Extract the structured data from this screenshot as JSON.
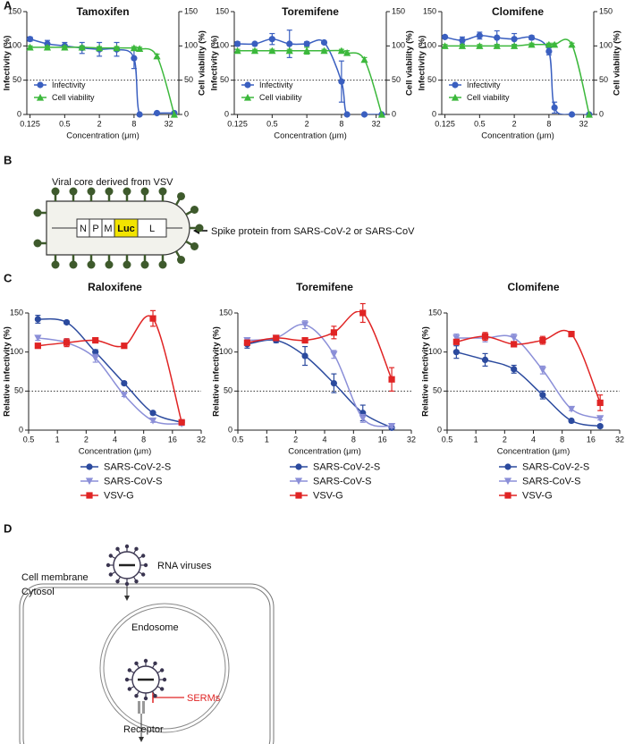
{
  "panel_labels": [
    "A",
    "B",
    "C",
    "D"
  ],
  "chart_data": [
    {
      "type": "scatter",
      "title": "Tamoxifen",
      "x": [
        0.125,
        0.25,
        0.5,
        1,
        2,
        4,
        8,
        10,
        20,
        40
      ],
      "xscale": "log2",
      "xlim": [
        0.11,
        48
      ],
      "xticks": [
        0.125,
        0.5,
        2,
        8,
        32
      ],
      "xlabel": "Concentration (μm)",
      "ylabel": "Infectivity (%)",
      "ylim": [
        0,
        150
      ],
      "yticks": [
        0,
        50,
        100,
        150
      ],
      "y2label": "Cell viability (%)",
      "y2lim": [
        0,
        150
      ],
      "y2ticks": [
        0,
        50,
        100,
        150
      ],
      "reference_line": 50,
      "legend": "lower left",
      "series": [
        {
          "name": "Infectivity",
          "color": "#3a5fc0",
          "marker": "circle",
          "values": [
            110,
            103,
            100,
            97,
            95,
            95,
            82,
            0,
            2,
            2
          ],
          "errors": [
            3,
            5,
            5,
            8,
            10,
            10,
            15,
            0,
            0,
            0
          ]
        },
        {
          "name": "Cell viability",
          "color": "#3cb83c",
          "marker": "triangle",
          "axis": "y2",
          "values": [
            98,
            98,
            98,
            98,
            97,
            97,
            97,
            96,
            85,
            0
          ],
          "errors": [
            2,
            2,
            2,
            2,
            2,
            2,
            2,
            2,
            3,
            0
          ]
        }
      ]
    },
    {
      "type": "scatter",
      "title": "Toremifene",
      "x": [
        0.125,
        0.25,
        0.5,
        1,
        2,
        4,
        8,
        10,
        20,
        40
      ],
      "xscale": "log2",
      "xlim": [
        0.11,
        48
      ],
      "xticks": [
        0.125,
        0.5,
        2,
        8,
        32
      ],
      "xlabel": "Concentration (μm)",
      "ylabel": "Infectivity (%)",
      "ylim": [
        0,
        150
      ],
      "yticks": [
        0,
        50,
        100,
        150
      ],
      "y2label": "Cell viability (%)",
      "y2lim": [
        0,
        150
      ],
      "y2ticks": [
        0,
        50,
        100,
        150
      ],
      "reference_line": 50,
      "legend": "lower left",
      "series": [
        {
          "name": "Infectivity",
          "color": "#3a5fc0",
          "marker": "circle",
          "values": [
            103,
            103,
            110,
            103,
            103,
            105,
            48,
            0,
            0,
            0
          ],
          "errors": [
            3,
            2,
            8,
            20,
            3,
            2,
            30,
            0,
            0,
            0
          ]
        },
        {
          "name": "Cell viability",
          "color": "#3cb83c",
          "marker": "triangle",
          "axis": "y2",
          "values": [
            93,
            93,
            93,
            93,
            93,
            93,
            93,
            90,
            80,
            0
          ],
          "errors": [
            2,
            2,
            2,
            2,
            5,
            2,
            2,
            3,
            3,
            0
          ]
        }
      ]
    },
    {
      "type": "scatter",
      "title": "Clomifene",
      "x": [
        0.125,
        0.25,
        0.5,
        1,
        2,
        4,
        8,
        10,
        20,
        40
      ],
      "xscale": "log2",
      "xlim": [
        0.11,
        48
      ],
      "xticks": [
        0.125,
        0.5,
        2,
        8,
        32
      ],
      "xlabel": "Concentration (μm)",
      "ylabel": "Infectivity (%)",
      "ylim": [
        0,
        150
      ],
      "yticks": [
        0,
        50,
        100,
        150
      ],
      "y2label": "Cell viability (%)",
      "y2lim": [
        0,
        150
      ],
      "y2ticks": [
        0,
        50,
        100,
        150
      ],
      "reference_line": 50,
      "legend": "lower left",
      "series": [
        {
          "name": "Infectivity",
          "color": "#3a5fc0",
          "marker": "circle",
          "values": [
            113,
            108,
            115,
            112,
            110,
            112,
            92,
            10,
            0,
            0
          ],
          "errors": [
            2,
            5,
            5,
            10,
            8,
            3,
            5,
            8,
            0,
            0
          ]
        },
        {
          "name": "Cell viability",
          "color": "#3cb83c",
          "marker": "triangle",
          "axis": "y2",
          "values": [
            100,
            100,
            100,
            100,
            100,
            102,
            102,
            102,
            102,
            0
          ],
          "errors": [
            2,
            2,
            2,
            2,
            2,
            2,
            2,
            2,
            2,
            0
          ]
        }
      ]
    },
    {
      "type": "scatter",
      "title": "Raloxifene",
      "x": [
        0.625,
        1.25,
        2.5,
        5,
        10,
        20
      ],
      "xscale": "log2",
      "xlim": [
        0.5,
        32
      ],
      "xticks": [
        0.5,
        1,
        2,
        4,
        8,
        16,
        32
      ],
      "xlabel": "Concentration (μm)",
      "ylabel": "Relative infectivity (%)",
      "ylim": [
        0,
        150
      ],
      "yticks": [
        0,
        50,
        100,
        150
      ],
      "reference_line": 50,
      "legend": "below",
      "series": [
        {
          "name": "SARS-CoV-2-S",
          "color": "#2b4a9e",
          "marker": "circle",
          "values": [
            142,
            138,
            100,
            60,
            22,
            10
          ],
          "errors": [
            5,
            2,
            3,
            2,
            2,
            2
          ]
        },
        {
          "name": "SARS-CoV-S",
          "color": "#8b8fd8",
          "marker": "triangle-down",
          "values": [
            118,
            112,
            92,
            45,
            12,
            8
          ],
          "errors": [
            3,
            5,
            5,
            2,
            2,
            2
          ]
        },
        {
          "name": "VSV-G",
          "color": "#e02424",
          "marker": "square",
          "values": [
            108,
            112,
            115,
            108,
            143,
            10
          ],
          "errors": [
            3,
            5,
            3,
            2,
            10,
            3
          ]
        }
      ]
    },
    {
      "type": "scatter",
      "title": "Toremifene",
      "x": [
        0.625,
        1.25,
        2.5,
        5,
        10,
        20
      ],
      "xscale": "log2",
      "xlim": [
        0.5,
        32
      ],
      "xticks": [
        0.5,
        1,
        2,
        4,
        8,
        16,
        32
      ],
      "xlabel": "Concentration (μm)",
      "ylabel": "Relative infectivity (%)",
      "ylim": [
        0,
        150
      ],
      "yticks": [
        0,
        50,
        100,
        150
      ],
      "reference_line": 50,
      "legend": "below",
      "series": [
        {
          "name": "SARS-CoV-2-S",
          "color": "#2b4a9e",
          "marker": "circle",
          "values": [
            110,
            115,
            95,
            60,
            22,
            3
          ],
          "errors": [
            5,
            3,
            12,
            12,
            10,
            2
          ]
        },
        {
          "name": "SARS-CoV-S",
          "color": "#8b8fd8",
          "marker": "triangle-down",
          "values": [
            115,
            118,
            135,
            97,
            15,
            5
          ],
          "errors": [
            3,
            3,
            5,
            5,
            5,
            2
          ]
        },
        {
          "name": "VSV-G",
          "color": "#e02424",
          "marker": "square",
          "values": [
            112,
            118,
            115,
            125,
            150,
            65
          ],
          "errors": [
            3,
            3,
            3,
            8,
            12,
            15
          ]
        }
      ]
    },
    {
      "type": "scatter",
      "title": "Clomifene",
      "x": [
        0.625,
        1.25,
        2.5,
        5,
        10,
        20
      ],
      "xscale": "log2",
      "xlim": [
        0.5,
        32
      ],
      "xticks": [
        0.5,
        1,
        2,
        4,
        8,
        16,
        32
      ],
      "xlabel": "Concentration (μm)",
      "ylabel": "Relative infectivity (%)",
      "ylim": [
        0,
        150
      ],
      "yticks": [
        0,
        50,
        100,
        150
      ],
      "reference_line": 50,
      "legend": "below",
      "series": [
        {
          "name": "SARS-CoV-2-S",
          "color": "#2b4a9e",
          "marker": "circle",
          "values": [
            100,
            90,
            78,
            45,
            12,
            5
          ],
          "errors": [
            8,
            8,
            5,
            5,
            2,
            2
          ]
        },
        {
          "name": "SARS-CoV-S",
          "color": "#8b8fd8",
          "marker": "triangle-down",
          "values": [
            118,
            118,
            118,
            77,
            27,
            15
          ],
          "errors": [
            5,
            5,
            5,
            5,
            2,
            2
          ]
        },
        {
          "name": "VSV-G",
          "color": "#e02424",
          "marker": "square",
          "values": [
            113,
            120,
            110,
            115,
            123,
            35
          ],
          "errors": [
            3,
            5,
            3,
            5,
            2,
            10
          ]
        }
      ]
    }
  ],
  "diagram_b": {
    "caption": "Viral core derived from VSV",
    "genes": [
      "N",
      "P",
      "M",
      "Luc",
      "L"
    ],
    "arrow_label": "Spike protein from SARS-CoV-2 or SARS-CoV"
  },
  "diagram_d": {
    "virus_label": "RNA viruses",
    "membrane_label": "Cell membrane",
    "cytosol_label": "Cytosol",
    "endosome_label": "Endosome",
    "inhibitor_label": "SERMs",
    "receptor_label": "Receptor"
  }
}
